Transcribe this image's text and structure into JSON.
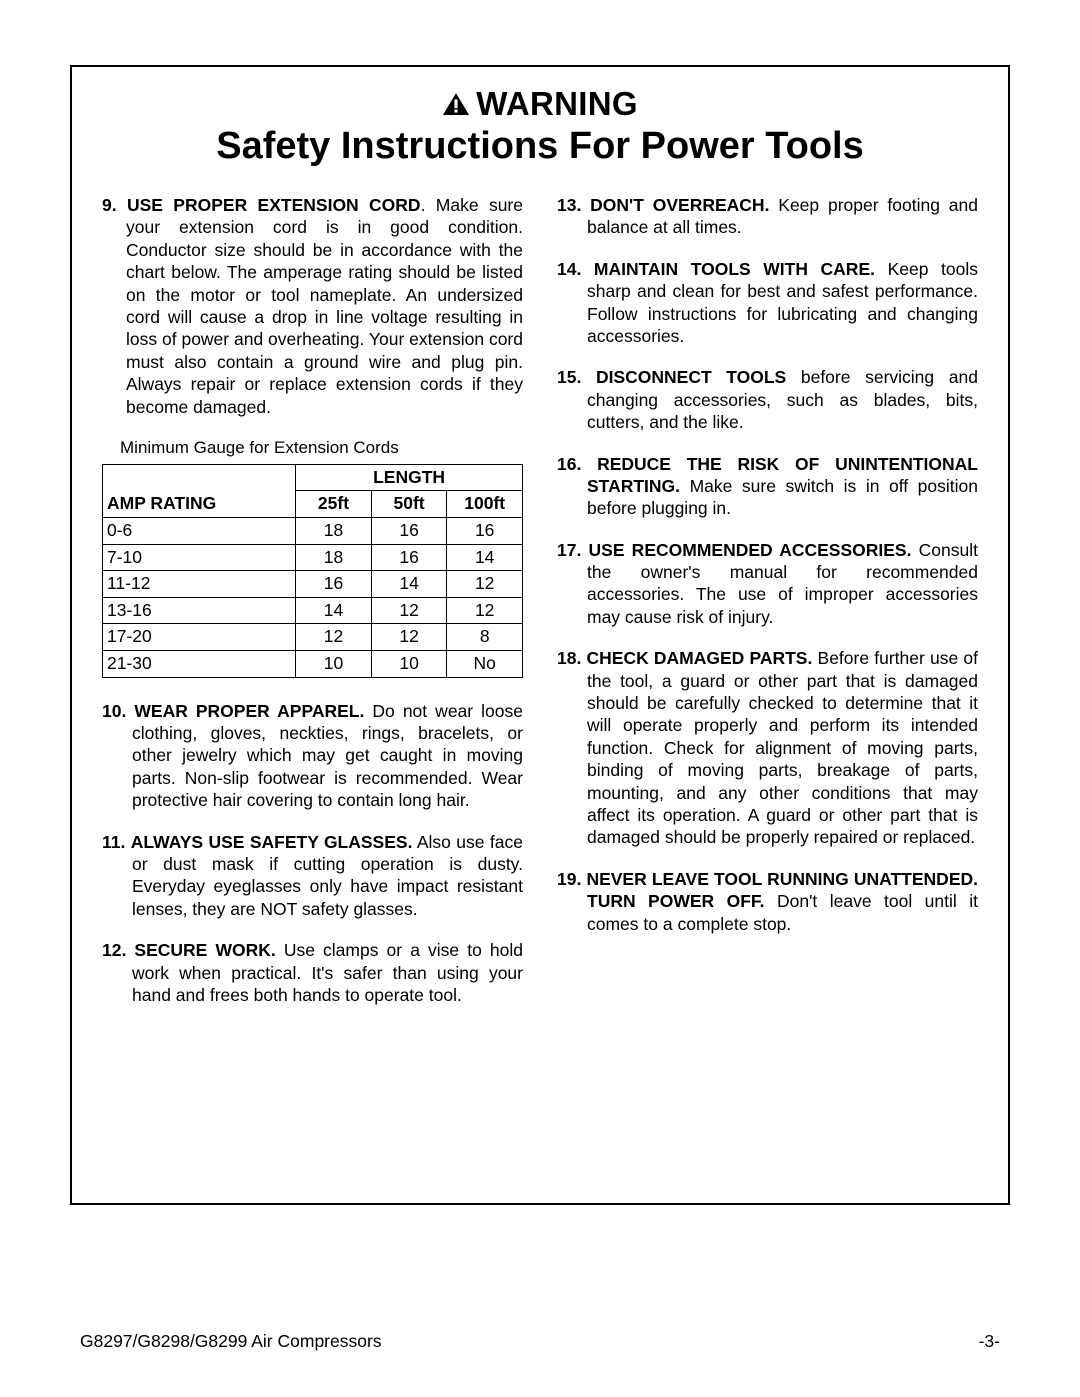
{
  "header": {
    "warning_label": "WARNING",
    "title": "Safety Instructions For Power Tools"
  },
  "left_items": [
    {
      "num": "9.",
      "heading": "USE PROPER EXTENSION CORD",
      "sep": ". ",
      "body": "Make sure your extension cord is in good condition. Conductor size should be in accordance with the chart below. The amperage rating should be listed on the motor or tool nameplate. An undersized cord will cause a drop in line voltage resulting in loss of power and overheating. Your extension cord must also contain a ground wire and plug pin. Always repair or replace extension cords if they become damaged."
    }
  ],
  "table": {
    "caption": "Minimum Gauge for Extension Cords",
    "length_header": "LENGTH",
    "amp_header": "AMP RATING",
    "cols": [
      "25ft",
      "50ft",
      "100ft"
    ],
    "rows": [
      {
        "amp": "0-6",
        "v": [
          "18",
          "16",
          "16"
        ]
      },
      {
        "amp": "7-10",
        "v": [
          "18",
          "16",
          "14"
        ]
      },
      {
        "amp": "11-12",
        "v": [
          "16",
          "14",
          "12"
        ]
      },
      {
        "amp": "13-16",
        "v": [
          "14",
          "12",
          "12"
        ]
      },
      {
        "amp": "17-20",
        "v": [
          "12",
          "12",
          "8"
        ]
      },
      {
        "amp": "21-30",
        "v": [
          "10",
          "10",
          "No"
        ]
      }
    ]
  },
  "left_items_after": [
    {
      "num": "10.",
      "heading": "WEAR PROPER APPAREL.",
      "sep": " ",
      "body": "Do not wear loose clothing, gloves, neckties, rings, bracelets, or other jewelry which may get caught in moving parts. Non-slip footwear is recommended. Wear protective hair covering to contain long hair."
    },
    {
      "num": "11.",
      "heading": "ALWAYS USE SAFETY GLASSES.",
      "sep": " ",
      "body": "Also use face or dust mask if cutting operation is dusty. Everyday eyeglasses only have impact resistant lenses, they are NOT safety glasses."
    },
    {
      "num": "12.",
      "heading": "SECURE WORK.",
      "sep": " ",
      "body": "Use clamps or a vise to hold work when practical. It's safer than using your hand and frees both hands to operate tool."
    }
  ],
  "right_items": [
    {
      "num": "13.",
      "heading": "DON'T OVERREACH.",
      "sep": " ",
      "body": "Keep proper footing and balance at all times."
    },
    {
      "num": "14.",
      "heading": "MAINTAIN TOOLS WITH CARE.",
      "sep": " ",
      "body": "Keep tools sharp and clean for best and safest performance. Follow instructions for lubricating and changing accessories."
    },
    {
      "num": "15.",
      "heading": "DISCONNECT TOOLS",
      "sep": " ",
      "body": "before servicing and changing accessories, such as blades, bits, cutters, and the like."
    },
    {
      "num": "16.",
      "heading": "REDUCE THE RISK OF UNINTENTIONAL STARTING.",
      "sep": " ",
      "body": "Make sure switch is in off position before plugging in."
    },
    {
      "num": "17.",
      "heading": "USE RECOMMENDED ACCESSORIES.",
      "sep": " ",
      "body": "Consult the owner's manual for recommended accessories. The use of improper accessories may cause risk of injury."
    },
    {
      "num": "18.",
      "heading": "CHECK DAMAGED PARTS.",
      "sep": " ",
      "body": "Before further use of the tool, a guard or other part that is damaged should be carefully checked to determine that it will operate properly and perform its intended function. Check for alignment of moving parts, binding of moving parts, breakage of parts, mounting, and any other conditions that may affect its operation. A guard or other part that is damaged should be properly repaired or replaced."
    },
    {
      "num": "19.",
      "heading": "NEVER LEAVE TOOL RUNNING UNATTENDED. TURN POWER OFF.",
      "sep": " ",
      "body": "Don't leave tool until it comes to a complete stop."
    }
  ],
  "footer": {
    "left": "G8297/G8298/G8299 Air Compressors",
    "right": "-3-"
  }
}
